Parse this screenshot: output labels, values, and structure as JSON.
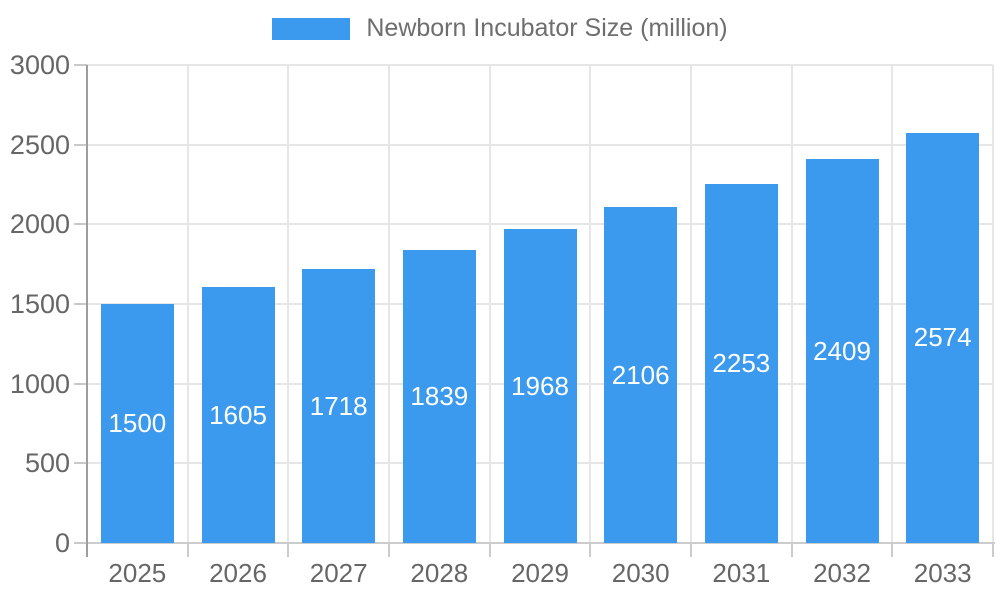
{
  "chart_data": {
    "type": "bar",
    "title": "Newborn Incubator Size (million)",
    "legend": [
      "Newborn Incubator Size (million)"
    ],
    "legend_position": "top-center",
    "categories": [
      "2025",
      "2026",
      "2027",
      "2028",
      "2029",
      "2030",
      "2031",
      "2032",
      "2033"
    ],
    "values": [
      1500,
      1605,
      1718,
      1839,
      1968,
      2106,
      2253,
      2409,
      2574
    ],
    "xlabel": "",
    "ylabel": "",
    "ylim": [
      0,
      3000
    ],
    "ytick_step": 500,
    "yticks": [
      "0",
      "500",
      "1000",
      "1500",
      "2000",
      "2500",
      "3000"
    ],
    "grid": true,
    "bar_label_position": "inside-center",
    "colors": {
      "bar": "#3B9AED",
      "grid": "#E6E6E6",
      "y_axis": "#9E9E9E",
      "x_axis": "#CCCCCC",
      "tick": "#C9C9C9",
      "text": "#666666",
      "legend_text": "#6E6E6E",
      "bar_label": "#FFFFFF",
      "background": "#FFFFFF"
    }
  }
}
